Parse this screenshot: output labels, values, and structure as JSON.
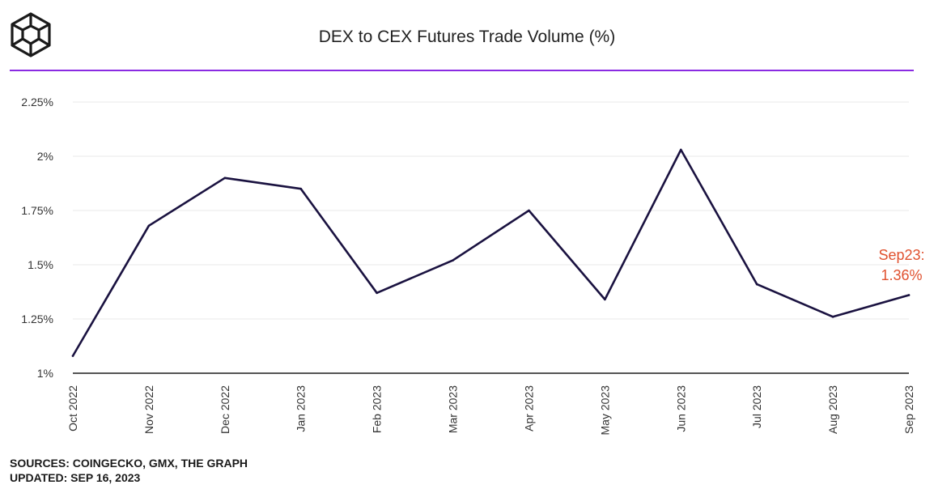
{
  "chart_data": {
    "type": "line",
    "title": "DEX to CEX Futures Trade Volume (%)",
    "categories": [
      "Oct 2022",
      "Nov 2022",
      "Dec 2022",
      "Jan 2023",
      "Feb 2023",
      "Mar 2023",
      "Apr 2023",
      "May 2023",
      "Jun 2023",
      "Jul 2023",
      "Aug 2023",
      "Sep 2023"
    ],
    "series": [
      {
        "values": [
          1.08,
          1.68,
          1.9,
          1.85,
          1.37,
          1.52,
          1.75,
          1.34,
          2.03,
          1.41,
          1.26,
          1.36
        ]
      }
    ],
    "ylim": [
      1.0,
      2.25
    ],
    "yticks": [
      1.0,
      1.25,
      1.5,
      1.75,
      2.0,
      2.25
    ],
    "ytick_labels": [
      "1%",
      "1.25%",
      "1.5%",
      "1.75%",
      "2%",
      "2.25%"
    ],
    "annotation": {
      "line1": "Sep23:",
      "line2": "1.36%"
    },
    "grid": true,
    "colors": {
      "line": "#1a1240",
      "annotation": "#e0512f",
      "divider": "#8a2be2",
      "grid": "#e8e8e8",
      "baseline": "#555555"
    }
  },
  "footer": {
    "sources": "SOURCES: COINGECKO, GMX, THE GRAPH",
    "updated": "UPDATED: SEP 16, 2023"
  },
  "logo": {
    "icon": "cube-logo-icon"
  }
}
